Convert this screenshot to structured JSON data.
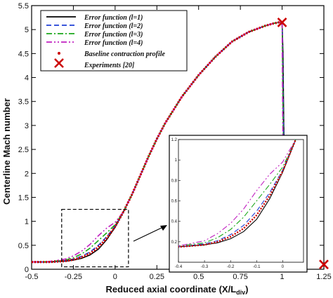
{
  "chart_data": {
    "type": "line",
    "title": "",
    "xlabel": "Reduced axial coordinate (X/L",
    "xlabel_sub": "div",
    "xlabel_close": ")",
    "ylabel": "Centerline Mach number",
    "xlim": [
      -0.5,
      1.25
    ],
    "ylim": [
      0,
      5.5
    ],
    "xticks": [
      "-0.5",
      "-0.25",
      "0",
      "0.25",
      "0.5",
      "0.75",
      "1",
      "1.25"
    ],
    "yticks": [
      "0",
      "0.5",
      "1",
      "1.5",
      "2",
      "2.5",
      "3",
      "3.5",
      "4",
      "4.5",
      "5",
      "5.5"
    ],
    "grid": false,
    "legend_position": "top-left",
    "series": [
      {
        "name": "Error function (l=1)",
        "color": "#000000",
        "dash": "solid",
        "x": [
          -0.5,
          -0.4,
          -0.3,
          -0.25,
          -0.2,
          -0.15,
          -0.1,
          -0.05,
          0,
          0.05,
          0.1,
          0.15,
          0.2,
          0.25,
          0.3,
          0.4,
          0.5,
          0.6,
          0.7,
          0.8,
          0.9,
          0.95,
          0.98,
          1.0,
          1.005,
          1.01,
          1.02
        ],
        "y": [
          0.15,
          0.15,
          0.17,
          0.19,
          0.23,
          0.3,
          0.42,
          0.62,
          0.88,
          1.2,
          1.55,
          1.95,
          2.35,
          2.72,
          3.05,
          3.6,
          4.05,
          4.43,
          4.75,
          4.95,
          5.08,
          5.13,
          5.15,
          5.15,
          4.5,
          3.0,
          1.2
        ]
      },
      {
        "name": "Error function (l=2)",
        "color": "#1f3fd6",
        "dash": "dashed",
        "x": [
          -0.5,
          -0.4,
          -0.3,
          -0.25,
          -0.2,
          -0.15,
          -0.1,
          -0.05,
          0,
          0.05,
          0.1,
          0.15,
          0.2,
          0.25,
          0.3,
          0.4,
          0.5,
          0.6,
          0.7,
          0.8,
          0.9,
          0.95,
          0.98,
          1.0,
          1.003,
          1.008,
          1.015
        ],
        "y": [
          0.15,
          0.15,
          0.18,
          0.21,
          0.27,
          0.36,
          0.5,
          0.68,
          0.9,
          1.2,
          1.55,
          1.95,
          2.35,
          2.72,
          3.05,
          3.6,
          4.05,
          4.43,
          4.75,
          4.95,
          5.08,
          5.13,
          5.15,
          5.15,
          4.5,
          3.0,
          1.2
        ]
      },
      {
        "name": "Error function (l=3)",
        "color": "#1aa81a",
        "dash": "dashdot",
        "x": [
          -0.5,
          -0.4,
          -0.3,
          -0.25,
          -0.2,
          -0.15,
          -0.1,
          -0.05,
          0,
          0.05,
          0.1,
          0.15,
          0.2,
          0.25,
          0.3,
          0.4,
          0.5,
          0.6,
          0.7,
          0.8,
          0.9,
          0.95,
          0.98,
          1.0,
          1.002,
          1.006,
          1.012
        ],
        "y": [
          0.15,
          0.16,
          0.19,
          0.24,
          0.32,
          0.44,
          0.6,
          0.76,
          0.93,
          1.2,
          1.55,
          1.95,
          2.35,
          2.72,
          3.05,
          3.6,
          4.05,
          4.43,
          4.75,
          4.95,
          5.08,
          5.13,
          5.15,
          5.15,
          4.5,
          3.0,
          1.2
        ]
      },
      {
        "name": "Error function (l=4)",
        "color": "#c020c0",
        "dash": "dashdotdot",
        "x": [
          -0.5,
          -0.4,
          -0.3,
          -0.25,
          -0.2,
          -0.15,
          -0.1,
          -0.05,
          0,
          0.05,
          0.1,
          0.15,
          0.2,
          0.25,
          0.3,
          0.4,
          0.5,
          0.6,
          0.7,
          0.8,
          0.9,
          0.95,
          0.98,
          1.0,
          1.001,
          1.004,
          1.01
        ],
        "y": [
          0.15,
          0.16,
          0.21,
          0.28,
          0.38,
          0.52,
          0.7,
          0.86,
          0.98,
          1.2,
          1.55,
          1.95,
          2.35,
          2.72,
          3.05,
          3.6,
          4.05,
          4.43,
          4.75,
          4.95,
          5.08,
          5.13,
          5.15,
          5.15,
          4.5,
          3.0,
          1.2
        ]
      },
      {
        "name": "Baseline contraction profile",
        "color": "#cc0000",
        "dash": "dotted",
        "x": [
          -0.5,
          -0.4,
          -0.3,
          -0.25,
          -0.2,
          -0.15,
          -0.1,
          -0.05,
          0,
          0.05,
          0.1,
          0.15,
          0.2,
          0.25,
          0.3,
          0.4,
          0.5,
          0.6,
          0.7,
          0.8,
          0.9,
          0.95,
          0.98,
          1.0
        ],
        "y": [
          0.15,
          0.15,
          0.17,
          0.2,
          0.25,
          0.33,
          0.46,
          0.65,
          0.89,
          1.2,
          1.55,
          1.95,
          2.35,
          2.72,
          3.05,
          3.6,
          4.05,
          4.43,
          4.75,
          4.95,
          5.08,
          5.13,
          5.15,
          5.15
        ]
      },
      {
        "name": "Experiments [20]",
        "color": "#cc0000",
        "marker": "x",
        "x": [
          1.0,
          1.25
        ],
        "y": [
          5.15,
          0.1
        ]
      }
    ],
    "zoom_box": {
      "x": [
        -0.32,
        0.08
      ],
      "y": [
        0.05,
        1.25
      ]
    },
    "inset": {
      "xlim": [
        -0.4,
        0.08
      ],
      "ylim": [
        0,
        1.2
      ],
      "xticks": [
        "-0.4",
        "-0.3",
        "-0.2",
        "-0.1",
        "0"
      ],
      "yticks": [
        "0.2",
        "0.4",
        "0.6",
        "0.8",
        "1",
        "1.2"
      ]
    }
  }
}
